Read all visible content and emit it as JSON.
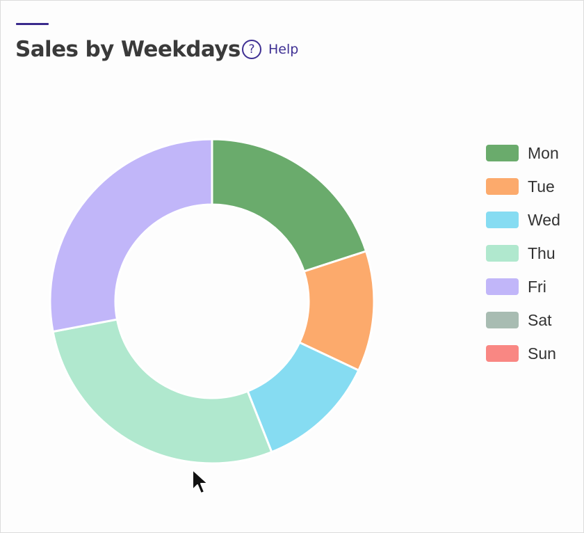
{
  "header": {
    "title": "Sales by Weekdays",
    "help_icon": "question-circle-icon",
    "help_label": "Help"
  },
  "colors": {
    "accent": "#3a2a8c",
    "help": "#3e2f93"
  },
  "chart_data": {
    "type": "pie",
    "title": "Sales by Weekdays",
    "donut": true,
    "legend_position": "right",
    "categories": [
      "Mon",
      "Tue",
      "Wed",
      "Thu",
      "Fri",
      "Sat",
      "Sun"
    ],
    "values": [
      20,
      12,
      12,
      28,
      28,
      0,
      0
    ],
    "colors": [
      "#6aab6c",
      "#fcaa6c",
      "#86dcf2",
      "#b0e8ce",
      "#c1b6f9",
      "#a8bcb2",
      "#f98783"
    ]
  }
}
